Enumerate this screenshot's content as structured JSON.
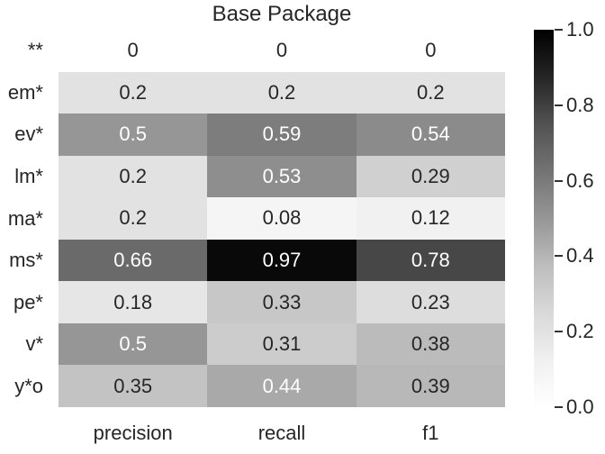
{
  "chart_data": {
    "type": "heatmap",
    "title": "Base Package",
    "rows": [
      "**",
      "em*",
      "ev*",
      "lm*",
      "ma*",
      "ms*",
      "pe*",
      "v*",
      "y*o"
    ],
    "columns": [
      "precision",
      "recall",
      "f1"
    ],
    "values": [
      [
        0,
        0,
        0
      ],
      [
        0.2,
        0.2,
        0.2
      ],
      [
        0.5,
        0.59,
        0.54
      ],
      [
        0.2,
        0.53,
        0.29
      ],
      [
        0.2,
        0.08,
        0.12
      ],
      [
        0.66,
        0.97,
        0.78
      ],
      [
        0.18,
        0.33,
        0.23
      ],
      [
        0.5,
        0.31,
        0.38
      ],
      [
        0.35,
        0.44,
        0.39
      ]
    ],
    "cell_labels": [
      [
        "0",
        "0",
        "0"
      ],
      [
        "0.2",
        "0.2",
        "0.2"
      ],
      [
        "0.5",
        "0.59",
        "0.54"
      ],
      [
        "0.2",
        "0.53",
        "0.29"
      ],
      [
        "0.2",
        "0.08",
        "0.12"
      ],
      [
        "0.66",
        "0.97",
        "0.78"
      ],
      [
        "0.18",
        "0.33",
        "0.23"
      ],
      [
        "0.5",
        "0.31",
        "0.38"
      ],
      [
        "0.35",
        "0.44",
        "0.39"
      ]
    ],
    "vmin": 0,
    "vmax": 1,
    "grid": false,
    "legend_position": "right-colorbar",
    "colormap": {
      "name": "Greys",
      "stops": [
        [
          0.0,
          255
        ],
        [
          0.125,
          240
        ],
        [
          0.25,
          217
        ],
        [
          0.375,
          189
        ],
        [
          0.5,
          150
        ],
        [
          0.625,
          115
        ],
        [
          0.75,
          82
        ],
        [
          0.875,
          37
        ],
        [
          1.0,
          0
        ]
      ]
    },
    "annotation_text_colors": {
      "light": "#ffffff",
      "dark": "#262626"
    },
    "colorbar": {
      "ticks": [
        "0.0",
        "0.2",
        "0.4",
        "0.6",
        "0.8",
        "1.0"
      ],
      "min": 0,
      "max": 1
    }
  }
}
